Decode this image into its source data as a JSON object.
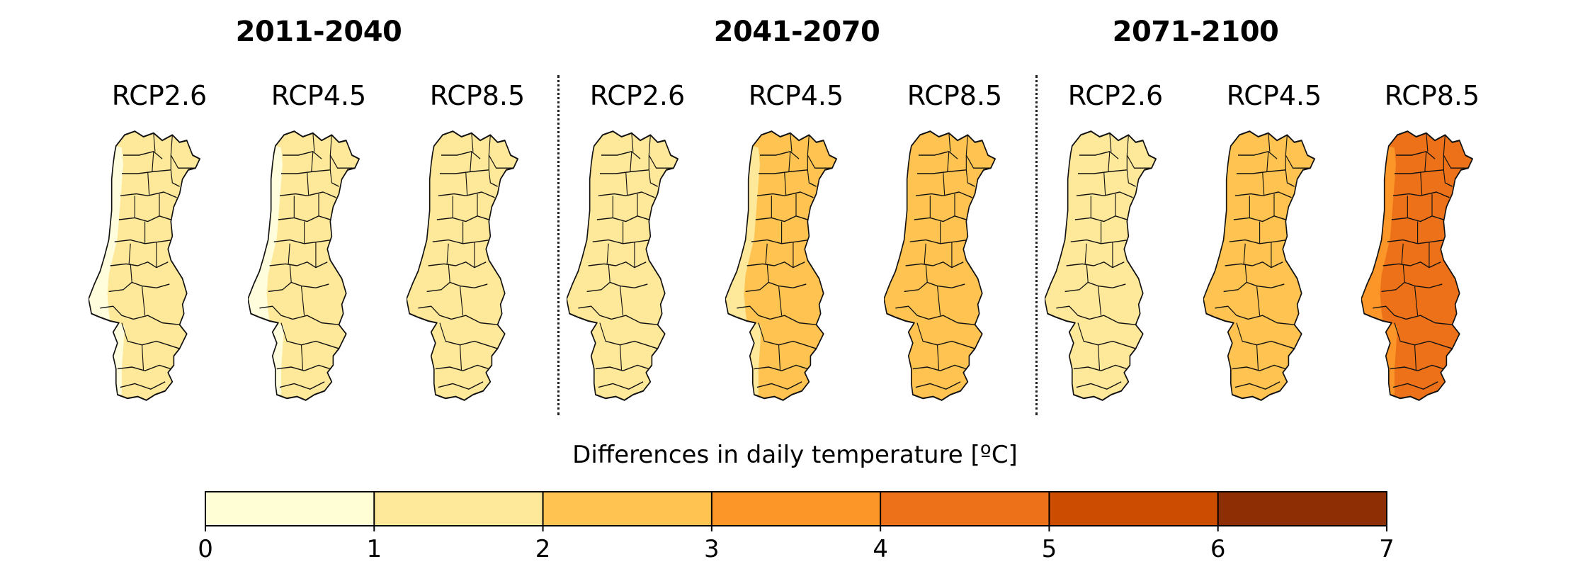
{
  "periods": [
    {
      "title": "2011-2040",
      "scenarios": [
        {
          "label": "RCP2.6",
          "fill": "#fee89a",
          "coast": "#fffddc"
        },
        {
          "label": "RCP4.5",
          "fill": "#fee89a",
          "coast": "#fffddc"
        },
        {
          "label": "RCP8.5",
          "fill": "#fee89a",
          "coast": null
        }
      ]
    },
    {
      "title": "2041-2070",
      "scenarios": [
        {
          "label": "RCP2.6",
          "fill": "#fee89a",
          "coast": null
        },
        {
          "label": "RCP4.5",
          "fill": "#fec350",
          "coast": "#fee89a"
        },
        {
          "label": "RCP8.5",
          "fill": "#fec350",
          "coast": null
        }
      ]
    },
    {
      "title": "2071-2100",
      "scenarios": [
        {
          "label": "RCP2.6",
          "fill": "#fee89a",
          "coast": null
        },
        {
          "label": "RCP4.5",
          "fill": "#fec350",
          "coast": null
        },
        {
          "label": "RCP8.5",
          "fill": "#ec7119",
          "coast": "#fc9629"
        }
      ]
    }
  ],
  "colorbar": {
    "title": "Differences in daily temperature [ºC]",
    "ticks": [
      "0",
      "1",
      "2",
      "3",
      "4",
      "5",
      "6",
      "7"
    ],
    "colors": [
      "#fffed4",
      "#fee89a",
      "#fec350",
      "#fc9629",
      "#ec7119",
      "#cc4d02",
      "#8e2e04"
    ]
  }
}
